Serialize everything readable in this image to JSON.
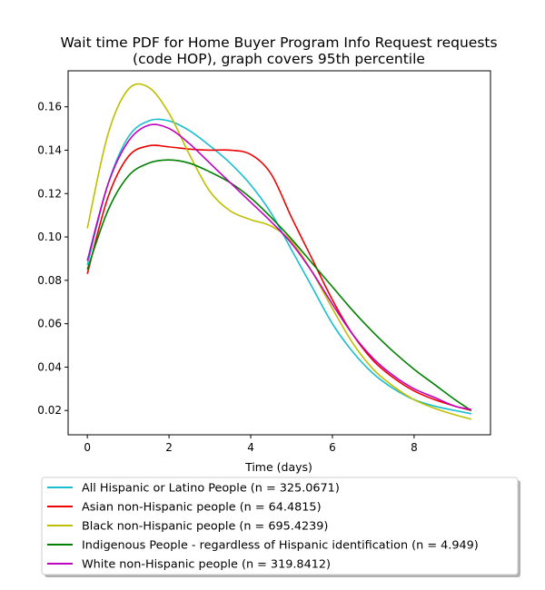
{
  "chart_data": {
    "type": "line",
    "title_lines": [
      "Wait time PDF for Home Buyer Program Info Request  requests",
      "(code HOP), graph covers 95th percentile"
    ],
    "xlabel": "Time (days)",
    "ylabel": "",
    "xlim": [
      -0.47,
      9.87
    ],
    "ylim": [
      0.0088,
      0.1766
    ],
    "x_ticks": [
      0,
      2,
      4,
      6,
      8
    ],
    "y_ticks": [
      0.02,
      0.04,
      0.06,
      0.08,
      0.1,
      0.12,
      0.14,
      0.16
    ],
    "y_tick_labels": [
      "0.02",
      "0.04",
      "0.06",
      "0.08",
      "0.10",
      "0.12",
      "0.14",
      "0.16"
    ],
    "grid": false,
    "legend_position": "below plot",
    "x": [
      0,
      0.5,
      1.0,
      1.5,
      2.0,
      2.5,
      3.0,
      3.5,
      4.0,
      4.5,
      5.0,
      5.5,
      6.0,
      6.5,
      7.0,
      7.5,
      8.0,
      8.5,
      9.0,
      9.4
    ],
    "series": [
      {
        "name": "All Hispanic or Latino People (n = 325.0671)",
        "color": "#17becf",
        "values": [
          0.087,
          0.124,
          0.146,
          0.1535,
          0.1535,
          0.149,
          0.142,
          0.134,
          0.124,
          0.111,
          0.094,
          0.077,
          0.06,
          0.047,
          0.037,
          0.03,
          0.025,
          0.022,
          0.02,
          0.0185
        ]
      },
      {
        "name": "Asian non-Hispanic people (n = 64.4815)",
        "color": "#ee0000",
        "values": [
          0.083,
          0.118,
          0.137,
          0.142,
          0.1415,
          0.1405,
          0.14,
          0.14,
          0.138,
          0.129,
          0.109,
          0.09,
          0.071,
          0.055,
          0.043,
          0.035,
          0.029,
          0.025,
          0.022,
          0.02
        ]
      },
      {
        "name": "Black non-Hispanic people (n = 695.4239)",
        "color": "#bfbf00",
        "values": [
          0.104,
          0.147,
          0.168,
          0.169,
          0.157,
          0.138,
          0.121,
          0.112,
          0.108,
          0.105,
          0.098,
          0.084,
          0.067,
          0.051,
          0.039,
          0.031,
          0.025,
          0.021,
          0.018,
          0.016
        ]
      },
      {
        "name": "Indigenous People - regardless of Hispanic identification (n = 4.949)",
        "color": "#008000",
        "values": [
          0.085,
          0.112,
          0.128,
          0.134,
          0.1355,
          0.134,
          0.13,
          0.125,
          0.118,
          0.109,
          0.099,
          0.088,
          0.077,
          0.066,
          0.056,
          0.047,
          0.039,
          0.032,
          0.025,
          0.02
        ]
      },
      {
        "name": "White non-Hispanic people (n = 319.8412)",
        "color": "#bf00bf",
        "values": [
          0.089,
          0.124,
          0.144,
          0.1515,
          0.15,
          0.143,
          0.134,
          0.125,
          0.116,
          0.107,
          0.097,
          0.084,
          0.069,
          0.055,
          0.044,
          0.036,
          0.03,
          0.026,
          0.022,
          0.0205
        ]
      }
    ]
  }
}
